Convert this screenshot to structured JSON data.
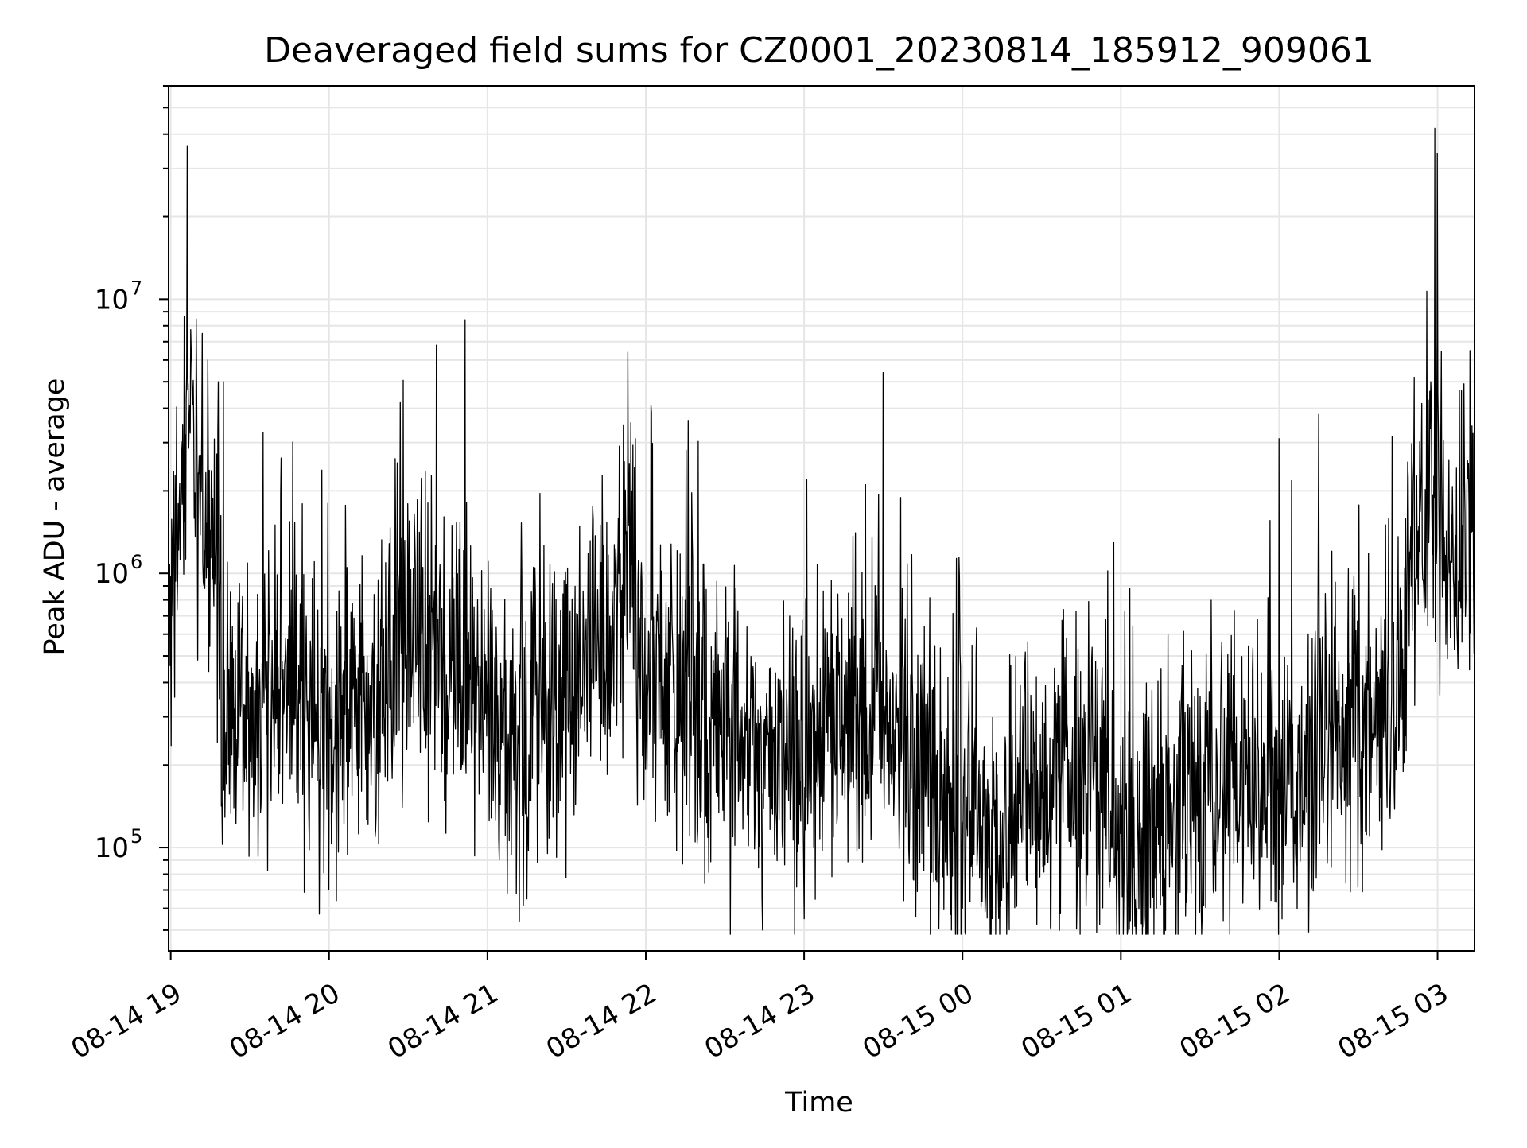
{
  "chart_data": {
    "type": "line",
    "title": "Deaveraged field sums for CZ0001_20230814_185912_909061",
    "xlabel": "Time",
    "ylabel": "Peak ADU - average",
    "yscale": "log",
    "xlim": [
      "2023-08-14 18:59:12",
      "2023-08-15 03:14:00"
    ],
    "ylim": [
      42000,
      60000000
    ],
    "x_ticks": [
      {
        "value": "2023-08-14 19:00",
        "label": "08-14 19"
      },
      {
        "value": "2023-08-14 20:00",
        "label": "08-14 20"
      },
      {
        "value": "2023-08-14 21:00",
        "label": "08-14 21"
      },
      {
        "value": "2023-08-14 22:00",
        "label": "08-14 22"
      },
      {
        "value": "2023-08-14 23:00",
        "label": "08-14 23"
      },
      {
        "value": "2023-08-15 00:00",
        "label": "08-15 00"
      },
      {
        "value": "2023-08-15 01:00",
        "label": "08-15 01"
      },
      {
        "value": "2023-08-15 02:00",
        "label": "08-15 02"
      },
      {
        "value": "2023-08-15 03:00",
        "label": "08-15 03"
      }
    ],
    "y_major_ticks": [
      {
        "value": 100000,
        "base": "10",
        "exp": "5"
      },
      {
        "value": 1000000,
        "base": "10",
        "exp": "6"
      },
      {
        "value": 10000000,
        "base": "10",
        "exp": "7"
      }
    ],
    "grid": true,
    "legend": "none",
    "line_color": "#000000",
    "grid_color": "#e6e6e6",
    "series": [
      {
        "points": [
          [
            "2023-08-14 19:00",
            800000
          ],
          [
            "2023-08-14 19:04",
            1500000
          ],
          [
            "2023-08-14 19:06",
            2500000
          ],
          [
            "2023-08-14 19:08",
            3500000
          ],
          [
            "2023-08-14 19:12",
            1500000
          ],
          [
            "2023-08-14 19:16",
            1000000
          ],
          [
            "2023-08-14 19:20",
            400000
          ],
          [
            "2023-08-14 19:24",
            250000
          ],
          [
            "2023-08-14 19:30",
            300000
          ],
          [
            "2023-08-14 19:36",
            350000
          ],
          [
            "2023-08-14 19:40",
            400000
          ],
          [
            "2023-08-14 19:45",
            500000
          ],
          [
            "2023-08-14 19:50",
            300000
          ],
          [
            "2023-08-14 20:00",
            250000
          ],
          [
            "2023-08-14 20:10",
            300000
          ],
          [
            "2023-08-14 20:20",
            400000
          ],
          [
            "2023-08-14 20:30",
            600000
          ],
          [
            "2023-08-14 20:40",
            550000
          ],
          [
            "2023-08-14 20:50",
            450000
          ],
          [
            "2023-08-14 21:00",
            350000
          ],
          [
            "2023-08-14 21:10",
            250000
          ],
          [
            "2023-08-14 21:20",
            300000
          ],
          [
            "2023-08-14 21:30",
            350000
          ],
          [
            "2023-08-14 21:40",
            450000
          ],
          [
            "2023-08-14 21:48",
            700000
          ],
          [
            "2023-08-14 21:54",
            1000000
          ],
          [
            "2023-08-14 22:00",
            400000
          ],
          [
            "2023-08-14 22:10",
            350000
          ],
          [
            "2023-08-14 22:20",
            300000
          ],
          [
            "2023-08-14 22:30",
            250000
          ],
          [
            "2023-08-14 22:40",
            250000
          ],
          [
            "2023-08-14 22:50",
            220000
          ],
          [
            "2023-08-14 23:00",
            200000
          ],
          [
            "2023-08-14 23:10",
            250000
          ],
          [
            "2023-08-14 23:20",
            300000
          ],
          [
            "2023-08-14 23:30",
            320000
          ],
          [
            "2023-08-14 23:40",
            250000
          ],
          [
            "2023-08-14 23:50",
            180000
          ],
          [
            "2023-08-15 00:00",
            130000
          ],
          [
            "2023-08-15 00:10",
            120000
          ],
          [
            "2023-08-15 00:20",
            140000
          ],
          [
            "2023-08-15 00:30",
            180000
          ],
          [
            "2023-08-15 00:40",
            200000
          ],
          [
            "2023-08-15 00:50",
            150000
          ],
          [
            "2023-08-15 01:00",
            120000
          ],
          [
            "2023-08-15 01:10",
            110000
          ],
          [
            "2023-08-15 01:20",
            130000
          ],
          [
            "2023-08-15 01:30",
            140000
          ],
          [
            "2023-08-15 01:40",
            150000
          ],
          [
            "2023-08-15 01:50",
            160000
          ],
          [
            "2023-08-15 02:00",
            180000
          ],
          [
            "2023-08-15 02:10",
            200000
          ],
          [
            "2023-08-15 02:20",
            240000
          ],
          [
            "2023-08-15 02:30",
            280000
          ],
          [
            "2023-08-15 02:40",
            330000
          ],
          [
            "2023-08-15 02:45",
            400000
          ],
          [
            "2023-08-15 02:50",
            800000
          ],
          [
            "2023-08-15 02:52",
            1500000
          ],
          [
            "2023-08-15 02:56",
            1800000
          ],
          [
            "2023-08-15 02:59",
            2000000
          ],
          [
            "2023-08-15 03:00",
            1800000
          ],
          [
            "2023-08-15 03:02",
            1500000
          ],
          [
            "2023-08-15 03:05",
            1100000
          ],
          [
            "2023-08-15 03:08",
            1100000
          ],
          [
            "2023-08-15 03:14",
            1300000
          ]
        ],
        "spikes": [
          [
            "2023-08-14 19:12",
            7500000
          ],
          [
            "2023-08-14 19:14",
            6000000
          ],
          [
            "2023-08-14 19:18",
            5000000
          ],
          [
            "2023-08-14 19:20",
            5000000
          ],
          [
            "2023-08-14 21:56",
            3100000
          ],
          [
            "2023-08-14 23:30",
            5400000
          ],
          [
            "2023-08-15 02:00",
            3100000
          ],
          [
            "2023-08-15 02:15",
            3800000
          ],
          [
            "2023-08-15 02:59",
            42000000
          ],
          [
            "2023-08-15 03:00",
            34000000
          ]
        ],
        "dips": [
          [
            "2023-08-14 20:00",
            70000
          ],
          [
            "2023-08-14 21:15",
            65000
          ],
          [
            "2023-08-14 23:00",
            55000
          ],
          [
            "2023-08-15 00:00",
            60000
          ],
          [
            "2023-08-15 01:15",
            62000
          ],
          [
            "2023-08-15 01:25",
            63000
          ]
        ]
      }
    ]
  }
}
